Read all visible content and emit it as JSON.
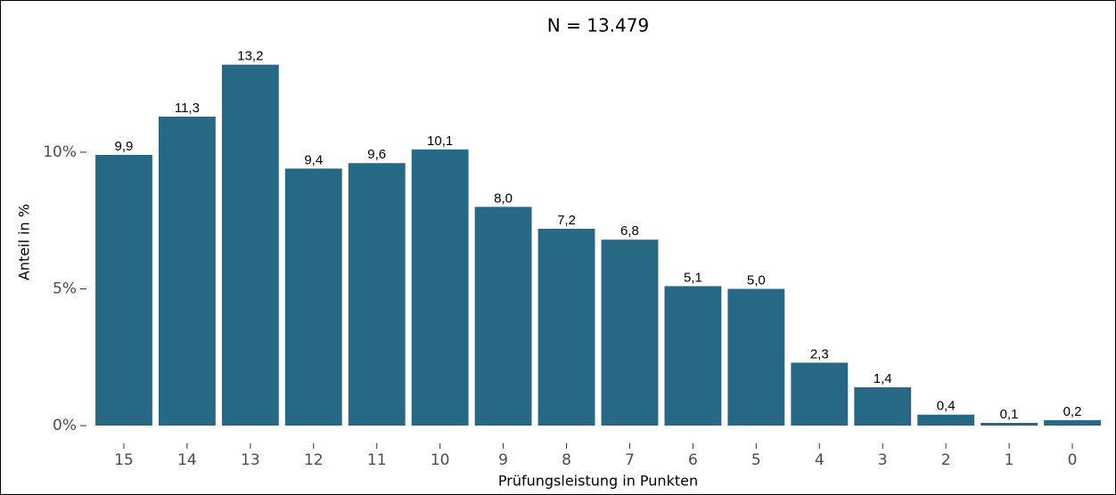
{
  "chart_data": {
    "type": "bar",
    "title": "N = 13.479",
    "x_label": "Prüfungsleistung in Punkten",
    "y_label": "Anteil in %",
    "categories": [
      "15",
      "14",
      "13",
      "12",
      "11",
      "10",
      "9",
      "8",
      "7",
      "6",
      "5",
      "4",
      "3",
      "2",
      "1",
      "0"
    ],
    "values": [
      9.9,
      11.3,
      13.2,
      9.4,
      9.6,
      10.1,
      8.0,
      7.2,
      6.8,
      5.1,
      5.0,
      2.3,
      1.4,
      0.4,
      0.1,
      0.2
    ],
    "value_labels": [
      "9,9",
      "11,3",
      "13,2",
      "9,4",
      "9,6",
      "10,1",
      "8,0",
      "7,2",
      "6,8",
      "5,1",
      "5,0",
      "2,3",
      "1,4",
      "0,4",
      "0,1",
      "0,2"
    ],
    "color": "#276985",
    "ylim": [
      -0.65,
      15.24
    ],
    "yticks": [
      {
        "value": 0,
        "label": "0%"
      },
      {
        "value": 5,
        "label": "5%"
      },
      {
        "value": 10,
        "label": "10%"
      }
    ],
    "grid": false
  }
}
